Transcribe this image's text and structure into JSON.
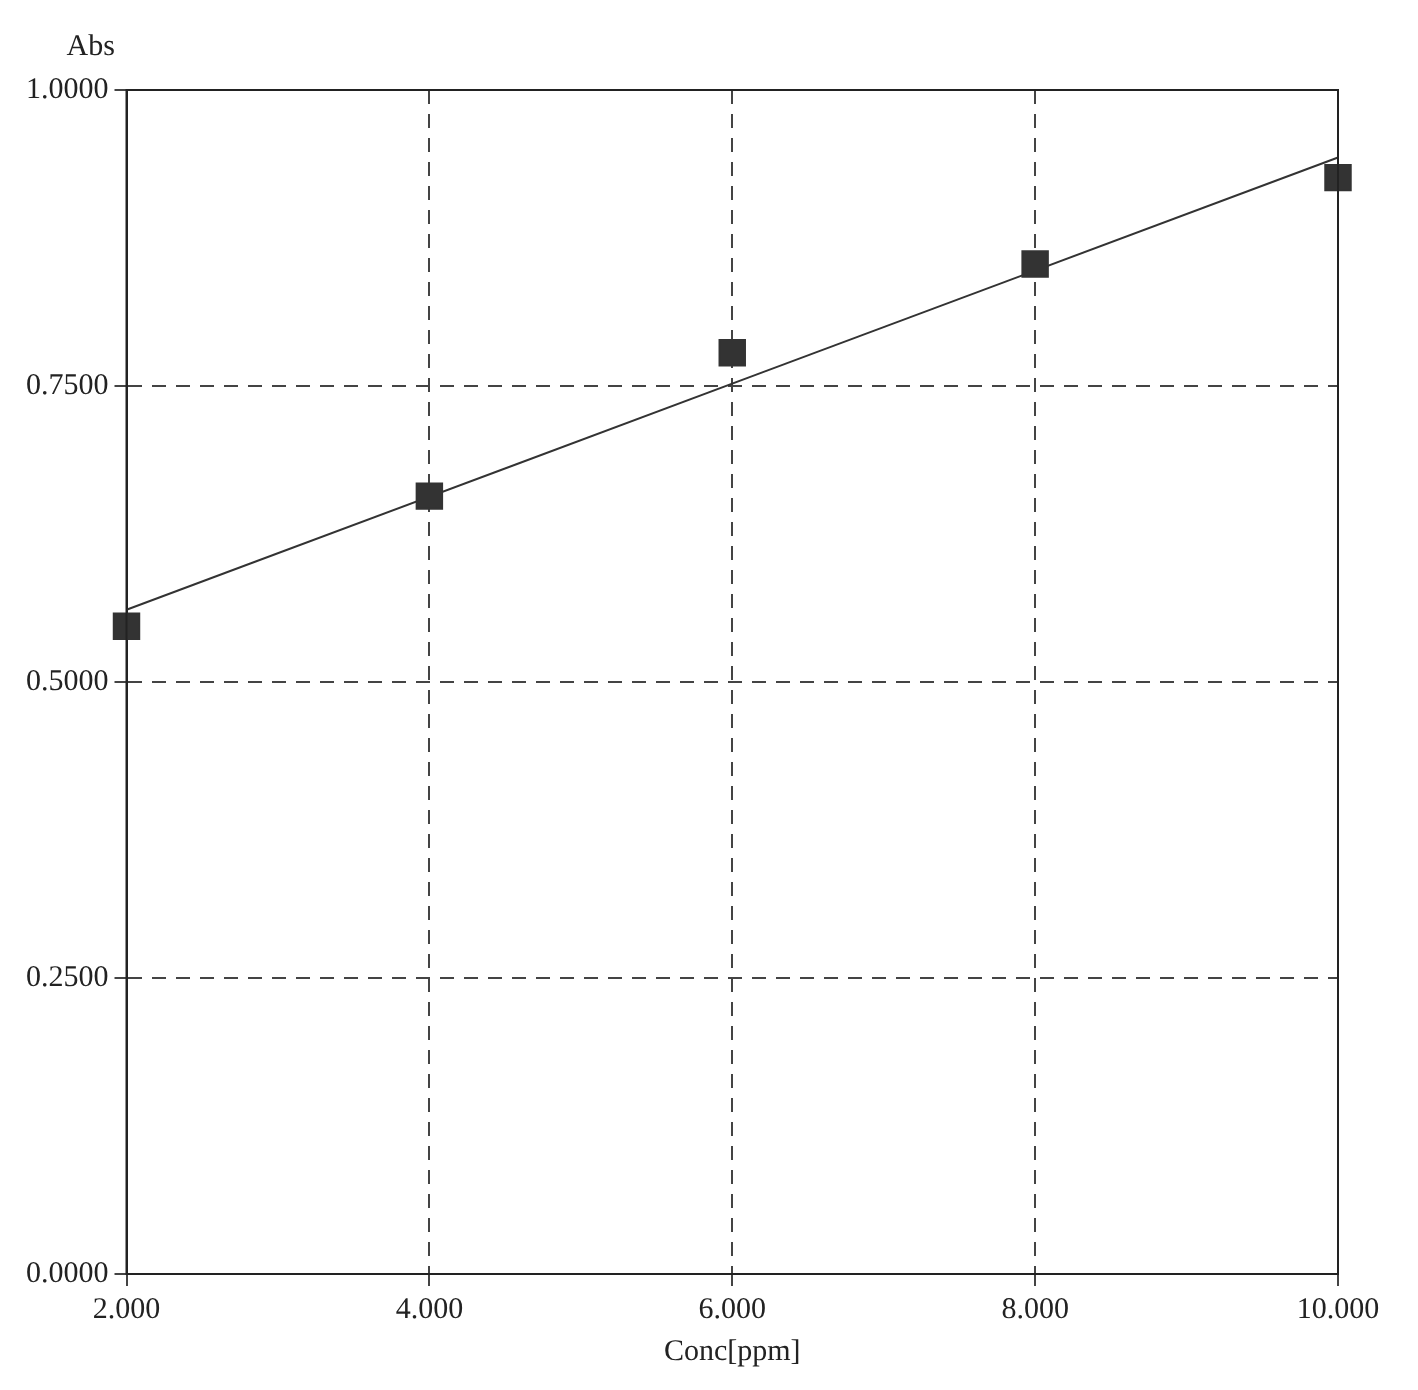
{
  "chart_data": {
    "type": "scatter",
    "xlabel": "Conc[ppm]",
    "ylabel": "Abs",
    "x": [
      2,
      4,
      6,
      8,
      10
    ],
    "series": [
      {
        "color": "#333333",
        "marker": "square",
        "values": [
          0.547,
          0.657,
          0.778,
          0.853,
          0.926
        ]
      },
      {
        "type": "line",
        "color": "#333333",
        "marker": "none",
        "x": [
          2,
          10
        ],
        "values": [
          0.561,
          0.943
        ]
      }
    ],
    "xlim": [
      2,
      10
    ],
    "ylim": [
      0,
      1
    ],
    "xticks": [
      {
        "value": 2,
        "label": "2.000"
      },
      {
        "value": 4,
        "label": "4.000"
      },
      {
        "value": 6,
        "label": "6.000"
      },
      {
        "value": 8,
        "label": "8.000"
      },
      {
        "value": 10,
        "label": "10.000"
      }
    ],
    "yticks": [
      {
        "value": 0,
        "label": "0.0000"
      },
      {
        "value": 0.25,
        "label": "0.2500"
      },
      {
        "value": 0.5,
        "label": "0.5000"
      },
      {
        "value": 0.75,
        "label": "0.7500"
      },
      {
        "value": 1,
        "label": "1.0000"
      }
    ],
    "grid": true,
    "line_style": "solid",
    "legend": false
  }
}
